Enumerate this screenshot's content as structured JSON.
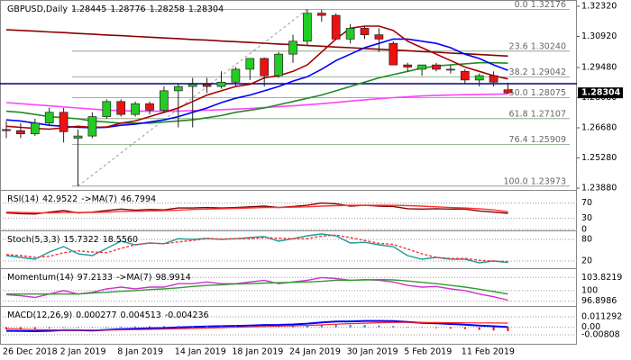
{
  "chart_data": [
    {
      "type": "candlestick",
      "title": "GBPUSD,Daily",
      "categories": [
        "26 Dec 2018",
        null,
        null,
        null,
        "2 Jan 2019",
        null,
        null,
        null,
        "8 Jan 2019",
        null,
        null,
        null,
        "14 Jan 2019",
        null,
        null,
        null,
        "18 Jan 2019",
        null,
        null,
        null,
        "24 Jan 2019",
        null,
        null,
        null,
        "30 Jan 2019",
        null,
        null,
        null,
        "5 Feb 2019",
        null,
        null,
        null,
        "11 Feb 2019",
        null,
        null,
        null
      ],
      "open": [
        1.266,
        1.2655,
        1.264,
        1.269,
        1.274,
        1.262,
        1.263,
        1.272,
        1.279,
        1.273,
        1.278,
        1.275,
        1.284,
        1.286,
        1.287,
        1.286,
        1.288,
        1.294,
        1.299,
        1.291,
        1.301,
        1.307,
        1.32,
        1.319,
        1.308,
        1.313,
        1.31,
        1.306,
        1.296,
        1.294,
        1.296,
        1.294,
        1.293,
        1.289,
        1.291,
        1.28445
      ],
      "high": [
        1.27,
        1.269,
        1.271,
        1.276,
        1.276,
        1.266,
        1.274,
        1.28,
        1.28,
        1.279,
        1.279,
        1.286,
        1.287,
        1.29,
        1.29,
        1.293,
        1.295,
        1.299,
        1.2995,
        1.302,
        1.31,
        1.32176,
        1.3216,
        1.32,
        1.315,
        1.314,
        1.313,
        1.307,
        1.297,
        1.296,
        1.297,
        1.296,
        1.294,
        1.292,
        1.293,
        1.28776
      ],
      "low": [
        1.262,
        1.262,
        1.263,
        1.268,
        1.26,
        1.23973,
        1.262,
        1.271,
        1.272,
        1.272,
        1.273,
        1.274,
        1.267,
        1.267,
        1.283,
        1.285,
        1.286,
        1.289,
        1.286,
        1.29,
        1.297,
        1.305,
        1.316,
        1.308,
        1.306,
        1.308,
        1.302,
        1.296,
        1.293,
        1.291,
        1.293,
        1.292,
        1.287,
        1.286,
        1.286,
        1.28258
      ],
      "close": [
        1.2655,
        1.264,
        1.269,
        1.274,
        1.265,
        1.263,
        1.272,
        1.279,
        1.273,
        1.278,
        1.275,
        1.284,
        1.286,
        1.287,
        1.286,
        1.288,
        1.294,
        1.299,
        1.291,
        1.301,
        1.307,
        1.32,
        1.319,
        1.308,
        1.313,
        1.31,
        1.308,
        1.296,
        1.295,
        1.296,
        1.294,
        1.294,
        1.289,
        1.291,
        1.288,
        1.28304
      ],
      "up_color": "#22cc22",
      "down_color": "#ee1111",
      "series": [
        {
          "color": "#8b0000",
          "values": [
            1.3123,
            1.312,
            1.3117,
            1.3113,
            1.311,
            1.3106,
            1.3103,
            1.3099,
            1.3096,
            1.3092,
            1.3089,
            1.3085,
            1.3082,
            1.3078,
            1.3075,
            1.3071,
            1.3068,
            1.3064,
            1.3061,
            1.3057,
            1.3054,
            1.305,
            1.3047,
            1.3043,
            1.304,
            1.3036,
            1.3033,
            1.3029,
            1.3026,
            1.3022,
            1.3019,
            1.3015,
            1.3012,
            1.3008,
            1.3005,
            1.3001
          ]
        },
        {
          "color": "#ff44ff",
          "values": [
            1.2785,
            1.278,
            1.2775,
            1.277,
            1.2765,
            1.276,
            1.2755,
            1.275,
            1.2748,
            1.2746,
            1.2745,
            1.2745,
            1.2746,
            1.2748,
            1.275,
            1.2752,
            1.2755,
            1.2758,
            1.2762,
            1.2766,
            1.277,
            1.2775,
            1.278,
            1.2786,
            1.2792,
            1.2798,
            1.2803,
            1.2808,
            1.2812,
            1.2816,
            1.2818,
            1.282,
            1.2822,
            1.2823,
            1.2824,
            1.2825
          ]
        },
        {
          "color": "#228b22",
          "values": [
            1.2745,
            1.274,
            1.273,
            1.272,
            1.2715,
            1.271,
            1.27,
            1.2695,
            1.269,
            1.269,
            1.269,
            1.2695,
            1.27,
            1.2705,
            1.2715,
            1.2725,
            1.274,
            1.275,
            1.276,
            1.2775,
            1.279,
            1.2805,
            1.282,
            1.284,
            1.286,
            1.288,
            1.29,
            1.2915,
            1.293,
            1.2945,
            1.2955,
            1.296,
            1.2965,
            1.297,
            1.297,
            1.2968
          ]
        },
        {
          "color": "#0000ff",
          "values": [
            1.2705,
            1.27,
            1.269,
            1.268,
            1.2675,
            1.267,
            1.2668,
            1.267,
            1.268,
            1.2685,
            1.2695,
            1.2705,
            1.272,
            1.274,
            1.276,
            1.2785,
            1.2805,
            1.282,
            1.284,
            1.286,
            1.2885,
            1.2905,
            1.294,
            1.298,
            1.301,
            1.304,
            1.306,
            1.308,
            1.308,
            1.307,
            1.306,
            1.304,
            1.301,
            1.299,
            1.296,
            1.2935
          ]
        },
        {
          "color": "#aa0000",
          "values": [
            1.2675,
            1.267,
            1.2665,
            1.2662,
            1.2668,
            1.2675,
            1.267,
            1.2672,
            1.269,
            1.27,
            1.272,
            1.274,
            1.276,
            1.279,
            1.282,
            1.284,
            1.286,
            1.287,
            1.29,
            1.291,
            1.293,
            1.296,
            1.302,
            1.308,
            1.313,
            1.314,
            1.314,
            1.312,
            1.307,
            1.304,
            1.301,
            1.298,
            1.295,
            1.293,
            1.291,
            1.2895
          ]
        }
      ],
      "hlines": [
        {
          "value": 1.2873,
          "color": "#000080"
        }
      ],
      "fib": [
        {
          "value": 1.32176,
          "label": "0.0 1.32176"
        },
        {
          "value": 1.3024,
          "label": "23.6 1.30240"
        },
        {
          "value": 1.29042,
          "label": "38.2 1.29042"
        },
        {
          "value": 1.28075,
          "label": "50.0 1.28075"
        },
        {
          "value": 1.27107,
          "label": "61.8 1.27107"
        },
        {
          "value": 1.25909,
          "label": "76.4 1.25909"
        },
        {
          "value": 1.23973,
          "label": "100.0 1.23973"
        }
      ],
      "ylim": [
        1.2384,
        1.3253
      ],
      "yticks": [
        {
          "value": 1.3232,
          "label": "1.32320"
        },
        {
          "value": 1.3092,
          "label": "1.30920"
        },
        {
          "value": 1.2948,
          "label": "1.29480"
        },
        {
          "value": 1.2808,
          "label": "1.28080"
        },
        {
          "value": 1.2668,
          "label": "1.26680"
        },
        {
          "value": 1.2528,
          "label": "1.25280"
        },
        {
          "value": 1.2388,
          "label": "1.23880"
        }
      ],
      "grid": false
    },
    {
      "type": "line",
      "series": [
        {
          "name": "RSI(14)",
          "color": "#8b0000",
          "values": [
            44,
            42,
            41,
            46,
            50,
            44,
            46,
            50,
            54,
            51,
            53,
            52,
            57,
            57,
            58,
            57,
            58,
            60,
            62,
            58,
            61,
            64,
            70,
            68,
            62,
            64,
            62,
            61,
            55,
            54,
            55,
            54,
            54,
            49,
            46,
            42.9522
          ]
        },
        {
          "name": "->MA(7)",
          "color": "#ff3333",
          "values": [
            46,
            45,
            44,
            44,
            45,
            45,
            45,
            46,
            48,
            48,
            49,
            50,
            51,
            53,
            54,
            55,
            56,
            57,
            58,
            58,
            59,
            60,
            62,
            63,
            64,
            64,
            64,
            64,
            63,
            62,
            60,
            58,
            57,
            55,
            52,
            46.7994
          ]
        }
      ],
      "ylim": [
        0,
        100
      ],
      "yticks": [
        0,
        30,
        70
      ],
      "grid": true
    },
    {
      "type": "line",
      "title": "Stoch(5,3,3)",
      "series": [
        {
          "color": "#1f9a9a",
          "values": [
            35,
            30,
            25,
            45,
            60,
            40,
            35,
            55,
            75,
            65,
            70,
            68,
            82,
            80,
            83,
            80,
            82,
            85,
            88,
            75,
            82,
            90,
            95,
            90,
            70,
            72,
            65,
            60,
            35,
            25,
            30,
            25,
            25,
            15,
            20,
            15.7322
          ]
        },
        {
          "color": "#ff3333",
          "dash": true,
          "values": [
            38,
            35,
            30,
            33,
            43,
            48,
            45,
            43,
            55,
            65,
            70,
            68,
            73,
            77,
            82,
            81,
            82,
            82,
            85,
            83,
            82,
            82,
            89,
            92,
            85,
            77,
            69,
            66,
            53,
            40,
            30,
            27,
            27,
            22,
            20,
            18.556
          ],
          "value_labels": [
            null,
            null,
            null,
            null,
            null,
            null,
            null,
            null,
            null,
            null,
            null,
            null,
            null,
            null,
            null,
            null,
            null,
            null,
            null,
            null,
            null,
            null,
            null,
            null,
            null,
            null,
            null,
            null,
            null,
            null,
            null,
            null,
            null,
            null,
            null,
            "18.5560"
          ]
        }
      ],
      "ylim": [
        0,
        100
      ],
      "yticks": [
        20,
        80
      ],
      "grid": true
    },
    {
      "type": "line",
      "series": [
        {
          "name": "Momentum(14)",
          "color": "#cc33cc",
          "values": [
            98.8,
            98.5,
            98,
            99,
            100,
            99,
            99.5,
            100.5,
            101,
            100.5,
            101,
            101,
            102,
            102,
            102.5,
            102,
            102,
            102.5,
            103,
            102,
            102.5,
            103,
            103.8,
            103.5,
            103,
            103.2,
            103,
            102.5,
            101.5,
            101,
            101.2,
            100.5,
            100,
            99,
            98.2,
            97.2133
          ]
        },
        {
          "name": "->MA(7)",
          "color": "#339933",
          "values": [
            99,
            99,
            99,
            99,
            99,
            99,
            99.3,
            99.5,
            99.8,
            100,
            100.3,
            100.5,
            100.8,
            101.2,
            101.5,
            101.7,
            101.9,
            102,
            102.2,
            102.3,
            102.4,
            102.5,
            102.7,
            103,
            103,
            103.1,
            103.2,
            103.1,
            102.8,
            102.4,
            102,
            101.5,
            101,
            100.4,
            99.7,
            98.9914
          ]
        }
      ],
      "ylim": [
        95.5,
        106
      ],
      "yticks": [
        103.8219,
        100,
        96.8986
      ],
      "grid": true
    },
    {
      "type": "macd",
      "title": "MACD(12,26,9)",
      "series": [
        {
          "color": "#0000ff",
          "values": [
            -0.0038,
            -0.004,
            -0.0042,
            -0.0038,
            -0.003,
            -0.0032,
            -0.0034,
            -0.0028,
            -0.002,
            -0.0016,
            -0.0011,
            -0.0008,
            -0.0001,
            0.0004,
            0.0009,
            0.0012,
            0.0015,
            0.0019,
            0.0025,
            0.0026,
            0.0031,
            0.0039,
            0.0053,
            0.0062,
            0.0064,
            0.0068,
            0.0068,
            0.0066,
            0.0057,
            0.0048,
            0.0042,
            0.0035,
            0.0029,
            0.0019,
            0.0011,
            0.000277
          ]
        },
        {
          "color": "#ff2222",
          "values": [
            -0.0015,
            -0.002,
            -0.0025,
            -0.0028,
            -0.0029,
            -0.003,
            -0.003,
            -0.003,
            -0.0028,
            -0.0026,
            -0.0023,
            -0.002,
            -0.0016,
            -0.0012,
            -0.0008,
            -0.0004,
            0,
            0.0004,
            0.0008,
            0.0012,
            0.0016,
            0.002,
            0.0026,
            0.0033,
            0.0039,
            0.0044,
            0.0049,
            0.0052,
            0.0053,
            0.0052,
            0.0051,
            0.0049,
            0.0048,
            0.0047,
            0.0046,
            0.004513
          ]
        },
        {
          "style": "histogram",
          "color": "#3366ff",
          "negative_color": "#ff0000",
          "values": [
            -0.0023,
            -0.002,
            -0.0017,
            -0.001,
            -0.0001,
            -0.0002,
            -0.0004,
            0.0002,
            0.0008,
            0.001,
            0.0012,
            0.0012,
            0.0015,
            0.0016,
            0.0017,
            0.0016,
            0.0015,
            0.0015,
            0.0017,
            0.0014,
            0.0015,
            0.0019,
            0.0027,
            0.0029,
            0.0025,
            0.0024,
            0.0019,
            0.0014,
            0.0004,
            -0.0004,
            -0.0009,
            -0.0014,
            -0.0019,
            -0.0028,
            -0.0035,
            -0.004236
          ]
        }
      ],
      "ylim": [
        -0.0178,
        0.021
      ],
      "yticks": [
        0.011292,
        {
          "value": 0,
          "label": "0.00"
        },
        -0.00808
      ],
      "grid": true
    }
  ]
}
